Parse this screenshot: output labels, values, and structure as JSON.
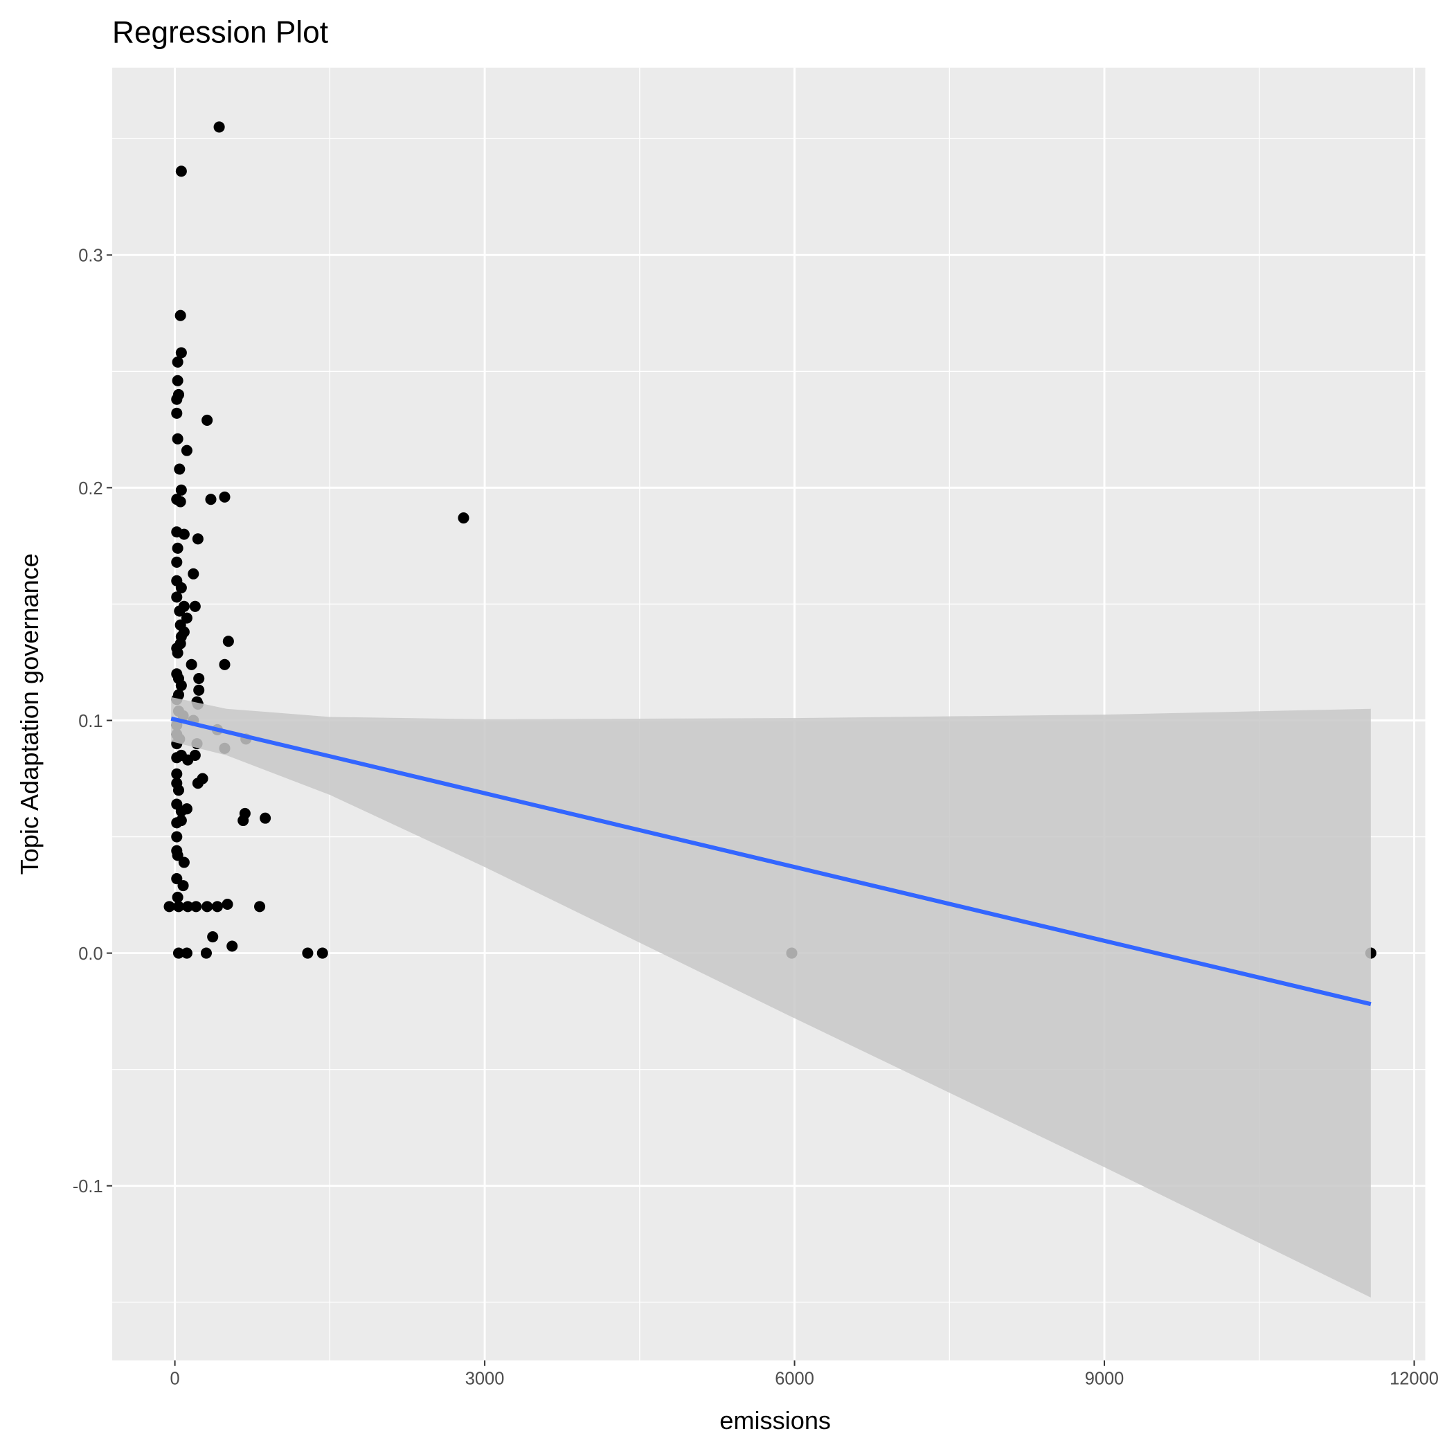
{
  "chart_data": {
    "type": "scatter",
    "title": "Regression Plot",
    "x_label": "emissions",
    "y_label": "Topic Adaptation governance",
    "xlim": [
      -607,
      12107
    ],
    "ylim": [
      -0.175,
      0.3805
    ],
    "xticks": [
      0,
      3000,
      6000,
      9000,
      12000
    ],
    "yticks": [
      -0.1,
      {
        "value": 0,
        "label": "0.0"
      },
      0.1,
      0.2,
      0.3
    ],
    "grid": true,
    "color": "#000000",
    "x": [
      429,
      62,
      54,
      62,
      27,
      27,
      36,
      18,
      18,
      312,
      27,
      116,
      45,
      62,
      18,
      54,
      348,
      482,
      2795,
      18,
      89,
      223,
      27,
      18,
      179,
      18,
      62,
      18,
      196,
      89,
      45,
      116,
      54,
      89,
      62,
      518,
      54,
      18,
      27,
      161,
      482,
      18,
      36,
      232,
      232,
      62,
      36,
      18,
      214,
      223,
      36,
      80,
      179,
      18,
      411,
      18,
      45,
      688,
      214,
      18,
      482,
      62,
      196,
      18,
      125,
      268,
      223,
      18,
      18,
      36,
      18,
      116,
      62,
      679,
      661,
      875,
      18,
      62,
      18,
      18,
      27,
      89,
      18,
      80,
      27,
      -54,
      36,
      125,
      205,
      312,
      411,
      509,
      821,
      366,
      554,
      36,
      116,
      304,
      1286,
      1429,
      5973,
      11580
    ],
    "values": [
      0.355,
      0.336,
      0.274,
      0.258,
      0.254,
      0.246,
      0.24,
      0.238,
      0.232,
      0.229,
      0.221,
      0.216,
      0.208,
      0.199,
      0.195,
      0.194,
      0.195,
      0.196,
      0.187,
      0.181,
      0.18,
      0.178,
      0.174,
      0.168,
      0.163,
      0.16,
      0.157,
      0.153,
      0.149,
      0.149,
      0.147,
      0.144,
      0.141,
      0.138,
      0.136,
      0.134,
      0.133,
      0.131,
      0.129,
      0.124,
      0.124,
      0.12,
      0.118,
      0.118,
      0.113,
      0.115,
      0.111,
      0.109,
      0.108,
      0.107,
      0.104,
      0.102,
      0.1,
      0.098,
      0.096,
      0.094,
      0.092,
      0.092,
      0.09,
      0.09,
      0.088,
      0.085,
      0.085,
      0.084,
      0.083,
      0.075,
      0.073,
      0.077,
      0.073,
      0.07,
      0.064,
      0.062,
      0.061,
      0.06,
      0.057,
      0.058,
      0.056,
      0.057,
      0.05,
      0.044,
      0.042,
      0.039,
      0.032,
      0.029,
      0.024,
      0.02,
      0.02,
      0.02,
      0.02,
      0.02,
      0.02,
      0.021,
      0.02,
      0.007,
      0.003,
      0,
      0,
      0,
      0,
      0,
      0,
      0
    ],
    "fit": {
      "color": "#3366ff",
      "band_color": "#c8c8c8",
      "x": [
        -36,
        500,
        1500,
        3000,
        6000,
        9000,
        11580
      ],
      "y": [
        0.1008,
        0.0951,
        0.0846,
        0.0687,
        0.037,
        0.0053,
        -0.0219
      ],
      "upper": [
        0.11,
        0.105,
        0.1015,
        0.1005,
        0.101,
        0.1025,
        0.105
      ],
      "lower": [
        0.091,
        0.085,
        0.068,
        0.037,
        -0.028,
        -0.092,
        -0.148
      ]
    }
  }
}
